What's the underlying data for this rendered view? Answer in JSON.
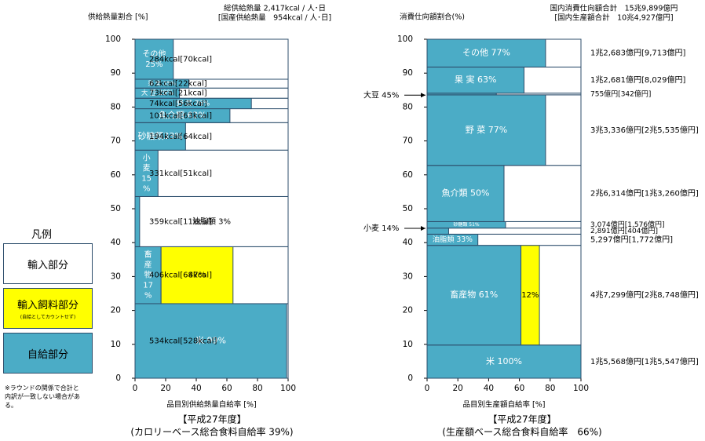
{
  "legend": {
    "title": "凡例",
    "import": "輸入部分",
    "feed": "輸入飼料部分",
    "feed_sub": "(自給としてカウントせず)",
    "self": "自給部分",
    "note": "※ラウンドの関係で合計と内訳が一致しない場合がある。"
  },
  "colors": {
    "self": "#4bacc6",
    "feed": "#ffff00",
    "import": "#ffffff",
    "border": "#2c4d6b"
  },
  "chart_data": [
    {
      "type": "bar",
      "subtype": "mekko",
      "ylabel": "供給熱量割合 [%]",
      "xlabel": "品目別供給熱量自給率 [%]",
      "header": [
        "総供給熱量 2,417kcal / 人･日",
        "[国産供給熱量　954kcal / 人･日]"
      ],
      "caption": [
        "【平成27年度】",
        "(カロリーベース総合食料自給率 39%)"
      ],
      "xlim": [
        0,
        100
      ],
      "ylim": [
        0,
        100
      ],
      "xticks": [
        "0",
        "20",
        "40",
        "60",
        "80",
        "100"
      ],
      "yticks": [
        "0",
        "10",
        "20",
        "30",
        "40",
        "50",
        "60",
        "70",
        "80",
        "90",
        "100"
      ],
      "items": [
        {
          "name": "米",
          "label": "米 99%",
          "self": 99,
          "feed": 0,
          "y0": 0,
          "y1": 22,
          "right": "534kcal[528kcal]"
        },
        {
          "name": "畜産物",
          "label": "畜産物17%",
          "self": 17,
          "feed": 47,
          "feed_label": "47%",
          "y0": 22,
          "y1": 38.8,
          "right": "406kcal[68kcal]"
        },
        {
          "name": "油脂類",
          "label": "油脂類 3%",
          "self": 3,
          "feed": 0,
          "y0": 38.8,
          "y1": 53.6,
          "right": "359kcal[11kcal]"
        },
        {
          "name": "小麦",
          "label": "小麦15%",
          "self": 15,
          "feed": 0,
          "y0": 53.6,
          "y1": 67.3,
          "right": "331kcal[51kcal]"
        },
        {
          "name": "砂糖類",
          "label": "砂糖類33%",
          "self": 33,
          "feed": 0,
          "y0": 67.3,
          "y1": 75.4,
          "right": "194kcal[64kcal]"
        },
        {
          "name": "魚介類",
          "label": "魚介類 62%",
          "self": 62,
          "feed": 0,
          "y0": 75.4,
          "y1": 79.5,
          "right": "101kcal[63kcal]"
        },
        {
          "name": "野菜",
          "label": "野 菜 76%",
          "self": 76,
          "feed": 0,
          "y0": 79.5,
          "y1": 82.6,
          "right": "74kcal[56kcal]"
        },
        {
          "name": "大豆",
          "label": "大 豆 29%",
          "self": 29,
          "feed": 0,
          "y0": 82.6,
          "y1": 85.6,
          "right": "73kcal[21kcal]"
        },
        {
          "name": "果実",
          "label": "果 実 35%",
          "self": 35,
          "feed": 0,
          "y0": 85.6,
          "y1": 88.2,
          "right": "62kcal[22kcal]"
        },
        {
          "name": "その他",
          "label": "その他25%",
          "self": 25,
          "feed": 0,
          "y0": 88.2,
          "y1": 100,
          "right": "284kcal[70kcal]"
        }
      ]
    },
    {
      "type": "bar",
      "subtype": "mekko",
      "ylabel": "消費仕向額割合(%)",
      "xlabel": "品目別生産額自給率 [%]",
      "header": [
        "国内消費仕向額合計　15兆9,899億円",
        "[国内生産額合計　10兆4,927億円]"
      ],
      "caption": [
        "【平成27年度】",
        "(生産額ベース総合食料自給率　66%)"
      ],
      "xlim": [
        0,
        100
      ],
      "ylim": [
        0,
        100
      ],
      "xticks": [
        "0",
        "20",
        "40",
        "60",
        "80",
        "100"
      ],
      "yticks": [
        "0",
        "10",
        "20",
        "30",
        "40",
        "50",
        "60",
        "70",
        "80",
        "90",
        "100"
      ],
      "callouts": [
        {
          "text": "大豆 45%",
          "y": 83.5
        },
        {
          "text": "小麦 14%",
          "y": 44.2
        }
      ],
      "items": [
        {
          "name": "米",
          "label": "米 100%",
          "self": 100,
          "feed": 0,
          "y0": 0,
          "y1": 9.8,
          "right": "1兆5,568億円[1兆5,547億円]"
        },
        {
          "name": "畜産物",
          "label": "畜産物 61%",
          "self": 61,
          "feed": 12,
          "feed_label": "12%",
          "y0": 9.8,
          "y1": 39.2,
          "right": "4兆7,299億円[2兆8,748億円]"
        },
        {
          "name": "油脂類",
          "label": "油脂類 33%",
          "self": 33,
          "feed": 0,
          "y0": 39.2,
          "y1": 42.5,
          "right": "5,297億円[1,772億円]"
        },
        {
          "name": "小麦",
          "label": "",
          "self": 14,
          "feed": 0,
          "y0": 42.5,
          "y1": 44.3,
          "right": "2,891億円[404億円]"
        },
        {
          "name": "砂糖類",
          "label": "砂糖類 51%",
          "self": 51,
          "feed": 0,
          "y0": 44.3,
          "y1": 46.2,
          "right": "3,074億円[1,576億円]"
        },
        {
          "name": "魚介類",
          "label": "魚介類 50%",
          "self": 50,
          "feed": 0,
          "y0": 46.2,
          "y1": 62.8,
          "right": "2兆6,314億円[1兆3,260億円]"
        },
        {
          "name": "野菜",
          "label": "野 菜 77%",
          "self": 77,
          "feed": 0,
          "y0": 62.8,
          "y1": 83.6,
          "right": "3兆3,336億円[2兆5,535億円]"
        },
        {
          "name": "大豆",
          "label": "",
          "self": 45,
          "feed": 0,
          "y0": 83.6,
          "y1": 84.1,
          "right": "755億円[342億円]"
        },
        {
          "name": "果実",
          "label": "果 実 63%",
          "self": 63,
          "feed": 0,
          "y0": 84.1,
          "y1": 91.8,
          "right": "1兆2,681億円[8,029億円]"
        },
        {
          "name": "その他",
          "label": "その他 77%",
          "self": 77,
          "feed": 0,
          "y0": 91.8,
          "y1": 100,
          "right": "1兆2,683億円[9,713億円]"
        }
      ]
    }
  ]
}
